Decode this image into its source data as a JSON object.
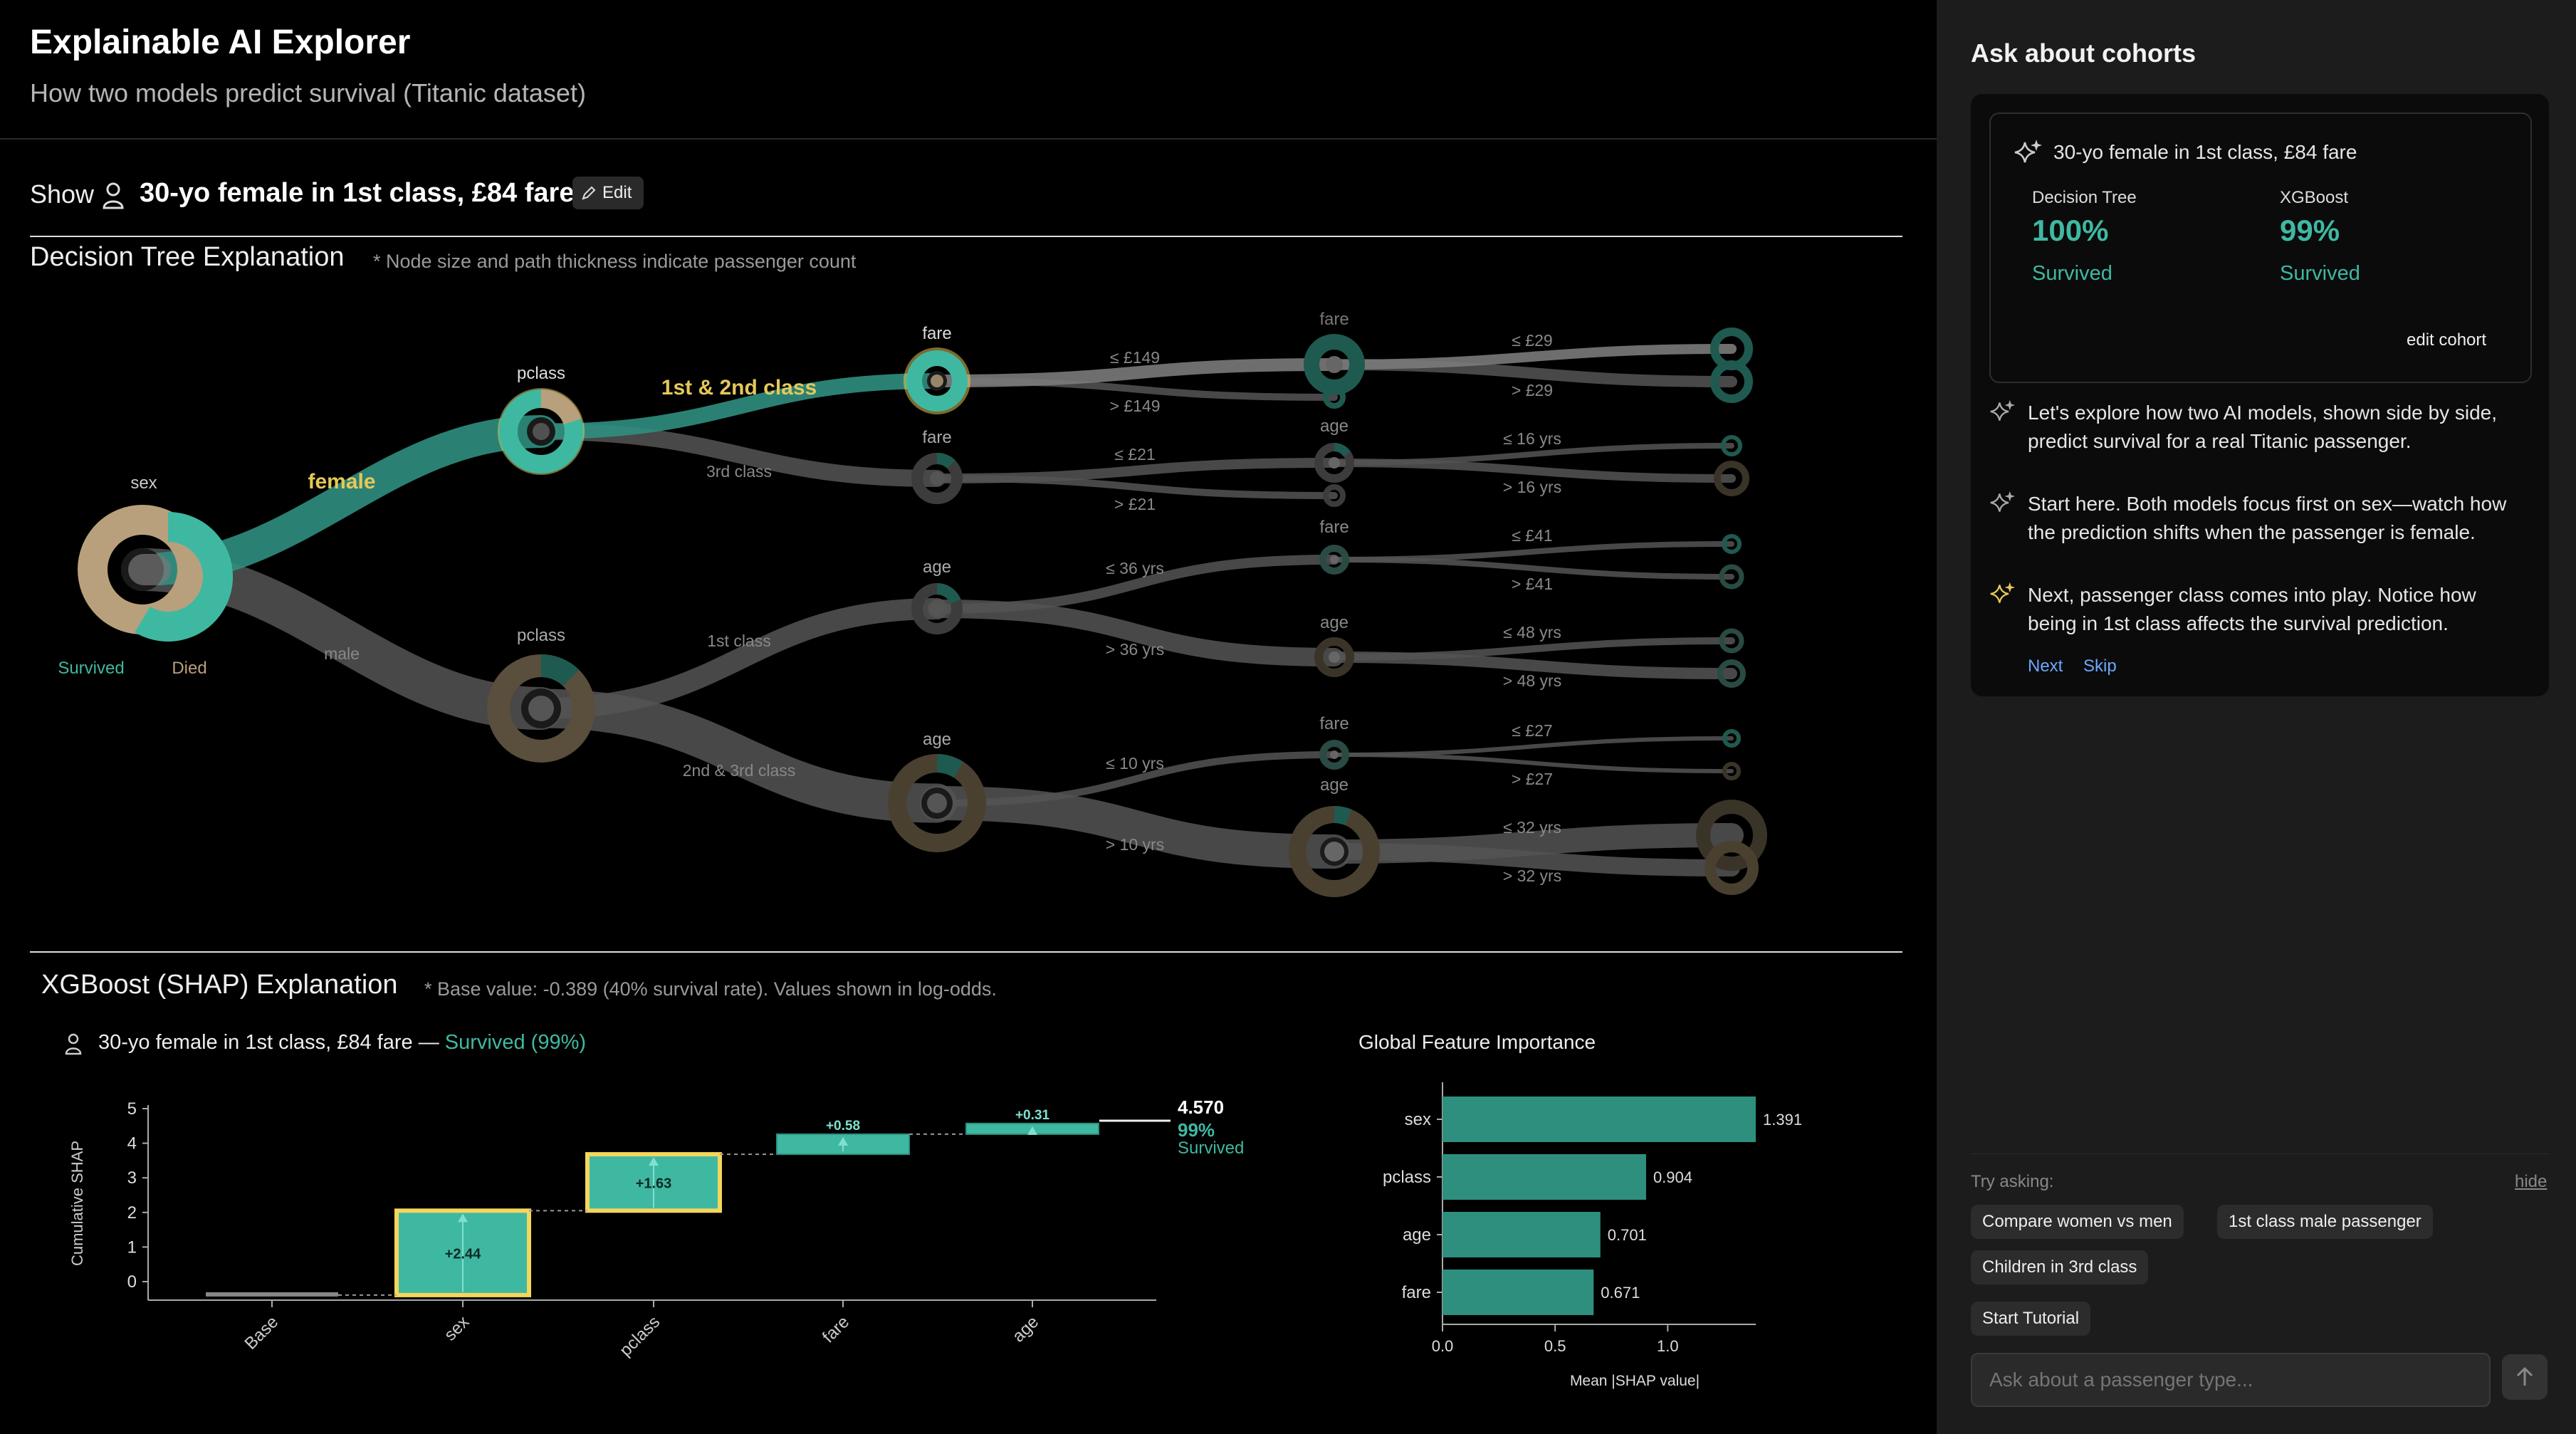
{
  "header": {
    "title": "Explainable AI Explorer",
    "subtitle": "How two models predict survival (Titanic dataset)"
  },
  "show_bar": {
    "label": "Show",
    "person_icon": "person-icon",
    "cohort": "30-yo female in 1st class, £84 fare",
    "edit": "Edit",
    "edit_icon": "pencil-icon"
  },
  "tree": {
    "title": "Decision Tree Explanation",
    "note": "* Node size and path thickness indicate passenger count",
    "colors": {
      "survived": "#3fb8a2",
      "died": "#b9a07c",
      "highlight": "#f5d65c",
      "path": "#555555"
    },
    "root": {
      "label": "sex",
      "survived_label": "Survived",
      "died_label": "Died"
    },
    "edge_labels": {
      "female": "female",
      "male": "male",
      "first_second": "1st & 2nd class",
      "third": "3rd class",
      "first": "1st class",
      "second_third": "2nd & 3rd class"
    },
    "l2_labels": {
      "pclass_female": "pclass",
      "pclass_male": "pclass"
    },
    "l3_labels": {
      "fare_a": "fare",
      "fare_b": "fare",
      "age_a": "age",
      "age_b": "age"
    },
    "l3_edges": {
      "a1": "≤ £149",
      "a2": "> £149",
      "b1": "≤ £21",
      "b2": "> £21",
      "c1": "≤ 36 yrs",
      "c2": "> 36 yrs",
      "d1": "≤ 10 yrs",
      "d2": "> 10 yrs"
    },
    "l4_labels": {
      "n1": "fare",
      "n2": "age",
      "n3": "fare",
      "n4": "age",
      "n5": "fare",
      "n6": "age"
    },
    "l4_edges": {
      "e1": "≤ £29",
      "e2": "> £29",
      "e3": "≤ 16 yrs",
      "e4": "> 16 yrs",
      "e5": "≤ £41",
      "e6": "> £41",
      "e7": "≤ 48 yrs",
      "e8": "> 48 yrs",
      "e9": "≤ £27",
      "e10": "> £27",
      "e11": "≤ 32 yrs",
      "e12": "> 32 yrs"
    }
  },
  "shap": {
    "title": "XGBoost (SHAP) Explanation",
    "note": "* Base value: -0.389 (40% survival rate). Values shown in log-odds.",
    "person_label": "30-yo female in 1st class, £84 fare —",
    "outcome": "Survived (99%)",
    "final_value": "4.570",
    "final_pct": "99%",
    "final_label": "Survived"
  },
  "chart_data": [
    {
      "type": "bar",
      "title": "",
      "subtype": "waterfall",
      "categories": [
        "Base",
        "sex",
        "pclass",
        "fare",
        "age"
      ],
      "values": [
        -0.389,
        2.44,
        1.63,
        0.58,
        0.31
      ],
      "value_labels": [
        "",
        "+2.44",
        "+1.63",
        "+0.58",
        "+0.31"
      ],
      "ylabel": "Cumulative SHAP",
      "yticks": [
        "0",
        "1",
        "2",
        "3",
        "4",
        "5"
      ],
      "ylim": [
        -0.4,
        5
      ]
    },
    {
      "type": "bar",
      "orientation": "horizontal",
      "title": "Global Feature Importance",
      "categories": [
        "sex",
        "pclass",
        "age",
        "fare"
      ],
      "values": [
        1.391,
        0.904,
        0.701,
        0.671
      ],
      "value_labels": [
        "1.391",
        "0.904",
        "0.701",
        "0.671"
      ],
      "xlabel": "Mean |SHAP value|",
      "xticks": [
        "0.0",
        "0.5",
        "1.0"
      ],
      "xlim": [
        0,
        1.391
      ]
    }
  ],
  "side": {
    "title": "Ask about cohorts",
    "card": {
      "cohort": "30-yo female in 1st class, £84 fare",
      "model1": "Decision Tree",
      "model1_pct": "100%",
      "model1_outcome": "Survived",
      "model2": "XGBoost",
      "model2_pct": "99%",
      "model2_outcome": "Survived",
      "edit": "edit cohort"
    },
    "messages": [
      {
        "text1": "Let's explore how two AI models, shown side by side,",
        "text2": "predict survival for a real Titanic passenger."
      },
      {
        "text1": "Start here. Both models focus first on sex—watch how",
        "text2": "the prediction shifts when the passenger is female."
      },
      {
        "text1": "Next, passenger class comes into play. Notice how",
        "text2": "being in 1st class affects the survival prediction."
      }
    ],
    "next": "Next",
    "skip": "Skip",
    "try_label": "Try asking:",
    "hide": "hide",
    "chips": [
      "Compare women vs men",
      "1st class male passenger",
      "Children in 3rd class",
      "Start Tutorial"
    ],
    "input_placeholder": "Ask about a passenger type...",
    "send_icon": "arrow-up-icon",
    "sparkle_icon": "sparkle-icon"
  }
}
